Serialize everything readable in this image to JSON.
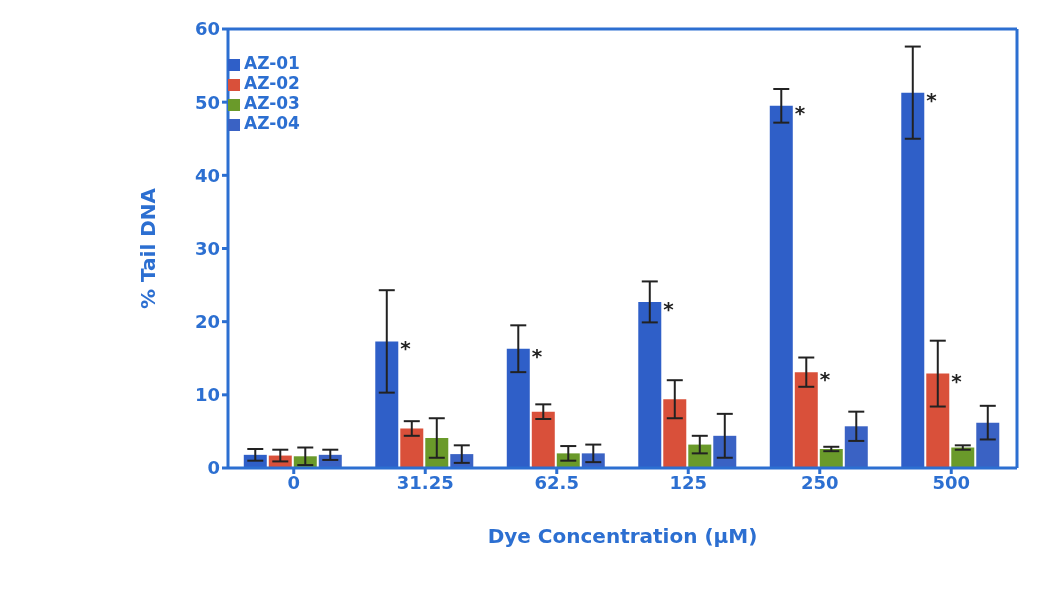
{
  "chart_data": {
    "type": "bar",
    "xlabel": "Dye Concentration (µM)",
    "ylabel": "% Tail DNA",
    "categories": [
      "0",
      "31.25",
      "62.5",
      "125",
      "250",
      "500"
    ],
    "series": [
      {
        "name": "AZ-01",
        "color": "#2f5fc8",
        "values": [
          1.8,
          17.3,
          16.3,
          22.7,
          49.5,
          51.3
        ],
        "errors": [
          0.8,
          7,
          3.2,
          2.8,
          2.3,
          6.3
        ],
        "value_labels": [
          null,
          "*",
          "*",
          "*",
          "*",
          "*"
        ]
      },
      {
        "name": "AZ-02",
        "color": "#d9503a",
        "values": [
          1.7,
          5.4,
          7.7,
          9.4,
          13.1,
          12.9
        ],
        "errors": [
          0.8,
          1,
          1,
          2.6,
          2,
          4.5
        ],
        "value_labels": [
          null,
          null,
          null,
          null,
          "*",
          "*"
        ]
      },
      {
        "name": "AZ-03",
        "color": "#6a9a2a",
        "values": [
          1.6,
          4.1,
          2,
          3.2,
          2.6,
          2.8
        ],
        "errors": [
          1.2,
          2.7,
          1,
          1.2,
          0.3,
          0.3
        ]
      },
      {
        "name": "AZ-04",
        "color": "#3a62c4",
        "values": [
          1.8,
          1.9,
          2,
          4.4,
          5.7,
          6.2
        ],
        "errors": [
          0.7,
          1.2,
          1.2,
          3,
          2,
          2.3
        ]
      }
    ],
    "ylim": [
      0,
      60
    ],
    "yticks": [
      0,
      10,
      20,
      30,
      40,
      50,
      60
    ],
    "grid": false,
    "legend": "top left"
  }
}
